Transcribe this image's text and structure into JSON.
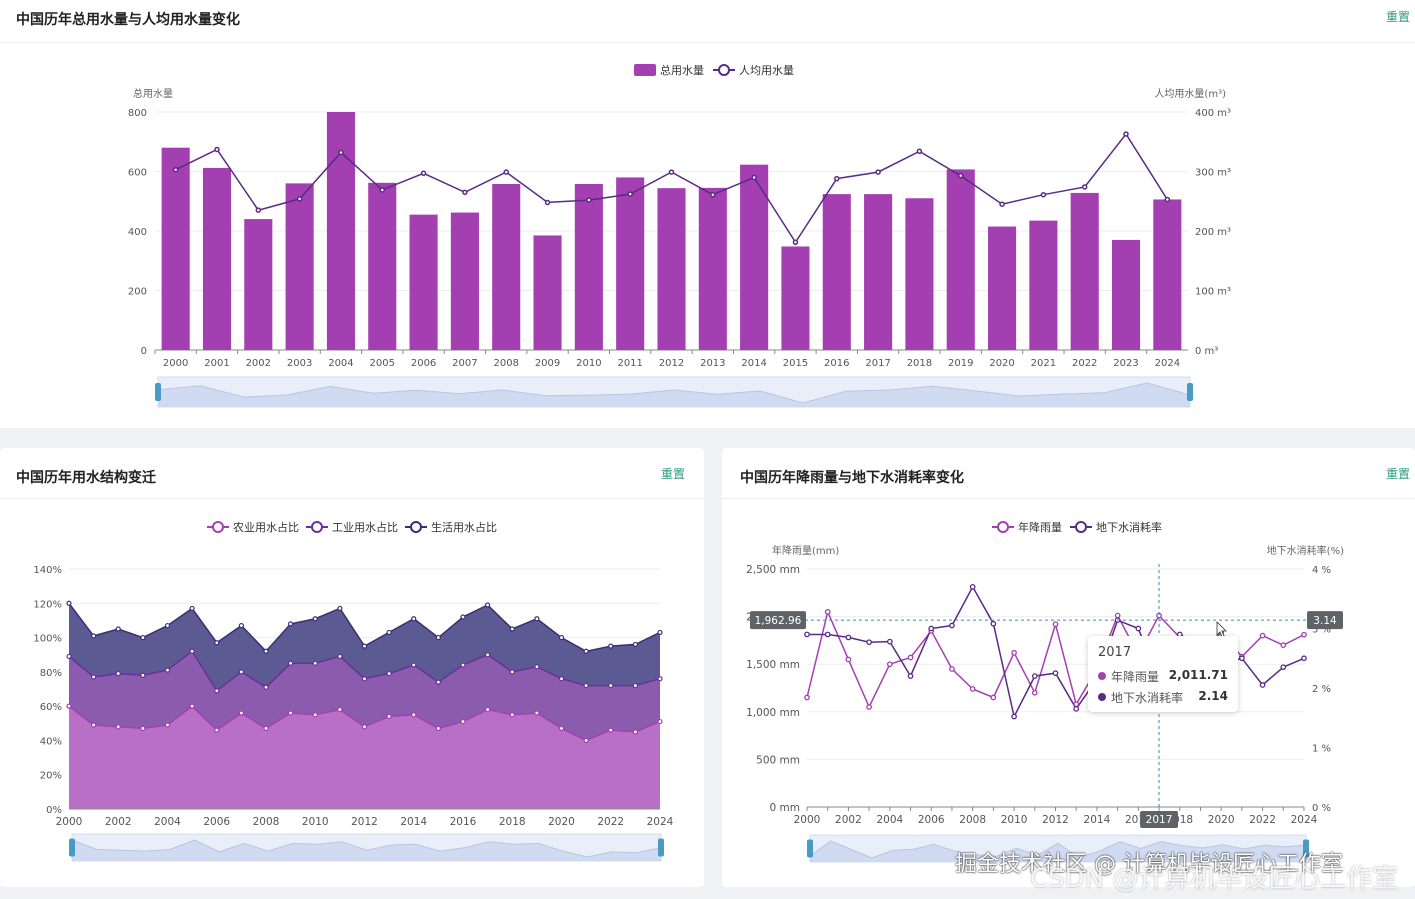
{
  "chart_data": [
    {
      "type": "bar",
      "title": "中国历年总用水量与人均用水量变化",
      "reset_label": "重置",
      "categories": [
        "2000",
        "2001",
        "2002",
        "2003",
        "2004",
        "2005",
        "2006",
        "2007",
        "2008",
        "2009",
        "2010",
        "2011",
        "2012",
        "2013",
        "2014",
        "2015",
        "2016",
        "2017",
        "2018",
        "2019",
        "2020",
        "2021",
        "2022",
        "2023",
        "2024"
      ],
      "series": [
        {
          "name": "总用水量",
          "kind": "bar",
          "axis": "left",
          "values": [
            680,
            612,
            440,
            560,
            800,
            562,
            455,
            462,
            558,
            385,
            558,
            580,
            544,
            545,
            623,
            348,
            524,
            524,
            510,
            607,
            415,
            435,
            528,
            370,
            506
          ]
        },
        {
          "name": "人均用水量",
          "kind": "line",
          "axis": "right",
          "values": [
            303,
            337,
            235,
            254,
            332,
            269,
            297,
            265,
            299,
            248,
            252,
            262,
            299,
            261,
            290,
            181,
            288,
            299,
            334,
            293,
            245,
            261,
            274,
            363,
            253
          ]
        }
      ],
      "ylabel": "总用水量",
      "ylabel_right": "人均用水量(m³)",
      "ylim": [
        0,
        800
      ],
      "ylim_right": [
        0,
        400
      ],
      "left_ticks": [
        "0",
        "200",
        "400",
        "600",
        "800"
      ],
      "right_ticks": [
        "0 m³",
        "100 m³",
        "200 m³",
        "300 m³",
        "400 m³"
      ],
      "colors": {
        "bar": "#a43fb2",
        "line": "#5a2a86"
      }
    },
    {
      "type": "area",
      "title": "中国历年用水结构变迁",
      "reset_label": "重置",
      "x": [
        "2000",
        "2001",
        "2002",
        "2003",
        "2004",
        "2005",
        "2006",
        "2007",
        "2008",
        "2009",
        "2010",
        "2011",
        "2012",
        "2013",
        "2014",
        "2015",
        "2016",
        "2017",
        "2018",
        "2019",
        "2020",
        "2021",
        "2022",
        "2023",
        "2024"
      ],
      "x_ticks": [
        "2000",
        "2002",
        "2004",
        "2006",
        "2008",
        "2010",
        "2012",
        "2014",
        "2016",
        "2018",
        "2020",
        "2022",
        "2024"
      ],
      "series": [
        {
          "name": "农业用水占比",
          "values": [
            60,
            49,
            48,
            47,
            49,
            60,
            46,
            56,
            47,
            56,
            55,
            58,
            48,
            54,
            55,
            47,
            51,
            58,
            55,
            56,
            47,
            40,
            46,
            45,
            51
          ]
        },
        {
          "name": "工业用水占比",
          "values": [
            29,
            28,
            31,
            31,
            32,
            32,
            23,
            24,
            24,
            29,
            30,
            31,
            28,
            25,
            29,
            27,
            33,
            32,
            25,
            27,
            29,
            32,
            26,
            27,
            25
          ]
        },
        {
          "name": "生活用水占比",
          "values": [
            31,
            24,
            26,
            22,
            26,
            25,
            28,
            27,
            21,
            23,
            26,
            28,
            19,
            24,
            27,
            26,
            28,
            29,
            25,
            28,
            24,
            20,
            23,
            24,
            27
          ]
        }
      ],
      "stacked": true,
      "ylim": [
        0,
        140
      ],
      "y_ticks": [
        "0%",
        "20%",
        "40%",
        "60%",
        "80%",
        "100%",
        "120%",
        "140%"
      ],
      "colors": {
        "agri": "#b86fc6",
        "industry": "#8b5cae",
        "domestic": "#5b5a93",
        "agri_line": "#a43fb2",
        "industry_line": "#6b2f9a",
        "domestic_line": "#3c2c74"
      }
    },
    {
      "type": "line",
      "title": "中国历年降雨量与地下水消耗率变化",
      "reset_label": "重置",
      "x": [
        "2000",
        "2001",
        "2002",
        "2003",
        "2004",
        "2005",
        "2006",
        "2007",
        "2008",
        "2009",
        "2010",
        "2011",
        "2012",
        "2013",
        "2014",
        "2015",
        "2016",
        "2017",
        "2018",
        "2019",
        "2020",
        "2021",
        "2022",
        "2023",
        "2024"
      ],
      "x_ticks": [
        "2000",
        "2002",
        "2004",
        "2006",
        "2008",
        "2010",
        "2012",
        "2014",
        "2016",
        "2018",
        "2020",
        "2022",
        "2024"
      ],
      "series": [
        {
          "name": "年降雨量",
          "axis": "left",
          "values": [
            1150,
            2050,
            1550,
            1050,
            1500,
            1570,
            1850,
            1450,
            1240,
            1150,
            1620,
            1200,
            1920,
            1080,
            1450,
            2011.71,
            1600,
            2011.71,
            1780,
            1640,
            1830,
            1580,
            1800,
            1700,
            1810
          ]
        },
        {
          "name": "地下水消耗率",
          "axis": "right",
          "values": [
            2.9,
            2.9,
            2.85,
            2.77,
            2.78,
            2.2,
            3.0,
            3.05,
            3.7,
            3.08,
            1.52,
            2.2,
            2.25,
            1.65,
            2.15,
            3.14,
            3.0,
            2.14,
            2.9,
            2.7,
            2.4,
            2.5,
            2.05,
            2.35,
            2.5
          ]
        }
      ],
      "ylabel": "年降雨量(mm)",
      "ylabel_right": "地下水消耗率(%)",
      "ylim": [
        0,
        2500
      ],
      "ylim_right": [
        0,
        4
      ],
      "left_ticks": [
        "0 mm",
        "500 mm",
        "1,000 mm",
        "1,500 mm",
        "2,000 mm",
        "2,500 mm"
      ],
      "right_ticks": [
        "0 %",
        "1 %",
        "2 %",
        "3 %",
        "4 %"
      ],
      "pointer": {
        "year": "2017",
        "left_value": "1,962.96",
        "right_value": "3.14"
      },
      "tooltip": {
        "title": "2017",
        "rows": [
          {
            "label": "年降雨量",
            "value": "2,011.71"
          },
          {
            "label": "地下水消耗率",
            "value": "2.14"
          }
        ]
      },
      "colors": {
        "rain": "#a43fb2",
        "ground": "#5a2a86"
      }
    }
  ],
  "watermark": {
    "line1": "掘金技术社区 @ 计算机毕设匠心工作室",
    "line2": "CSDN @计算机毕设匠心工作室"
  }
}
